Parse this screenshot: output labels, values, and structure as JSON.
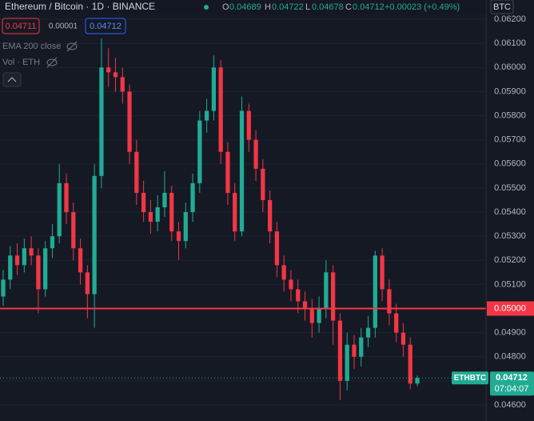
{
  "header": {
    "symbol": "Ethereum / Bitcoin · 1D · BINANCE",
    "o_label": "O",
    "o": "0.04689",
    "h_label": "H",
    "h": "0.04722",
    "l_label": "L",
    "l": "0.04678",
    "c_label": "C",
    "c": "0.04712",
    "change": "+0.00023 (+0.49%)",
    "currency": "BTC",
    "sell": "0.04711",
    "spread": "0.00001",
    "buy": "0.04712",
    "ema": "EMA 200 close",
    "vol": "Vol · ETH"
  },
  "chart_data": {
    "type": "candlestick",
    "open": [
      0.0505,
      0.0512,
      0.0522,
      0.0518,
      0.0525,
      0.0522,
      0.0508,
      0.0525,
      0.053,
      0.0552,
      0.054,
      0.0525,
      0.0515,
      0.0506,
      0.0555,
      0.06,
      0.0598,
      0.0596,
      0.059,
      0.0565,
      0.0548,
      0.054,
      0.0536,
      0.0542,
      0.0548,
      0.0532,
      0.0528,
      0.054,
      0.0552,
      0.0578,
      0.0582,
      0.06,
      0.0565,
      0.0548,
      0.0532,
      0.0582,
      0.057,
      0.0558,
      0.0545,
      0.0532,
      0.0518,
      0.0512,
      0.0508,
      0.0503,
      0.05,
      0.0494,
      0.05,
      0.0515,
      0.0495,
      0.047,
      0.0485,
      0.048,
      0.0488,
      0.0492,
      0.0522,
      0.0508,
      0.0498,
      0.049,
      0.0485,
      0.04689
    ],
    "high": [
      0.0516,
      0.0526,
      0.0527,
      0.0529,
      0.053,
      0.0525,
      0.0528,
      0.0535,
      0.056,
      0.0556,
      0.0544,
      0.0529,
      0.0518,
      0.056,
      0.0612,
      0.0608,
      0.0604,
      0.06,
      0.0593,
      0.057,
      0.0553,
      0.0545,
      0.0547,
      0.0557,
      0.0551,
      0.0536,
      0.0544,
      0.0556,
      0.0582,
      0.0587,
      0.0605,
      0.0603,
      0.0569,
      0.0552,
      0.0588,
      0.0585,
      0.0574,
      0.0562,
      0.0549,
      0.0536,
      0.0522,
      0.0516,
      0.0512,
      0.0507,
      0.0504,
      0.0505,
      0.052,
      0.0518,
      0.0498,
      0.049,
      0.0489,
      0.0492,
      0.0497,
      0.0524,
      0.0525,
      0.0512,
      0.0502,
      0.0494,
      0.0488,
      0.04722
    ],
    "low": [
      0.0501,
      0.0508,
      0.0514,
      0.0515,
      0.0518,
      0.0498,
      0.0505,
      0.0521,
      0.0527,
      0.0535,
      0.052,
      0.051,
      0.0496,
      0.0492,
      0.055,
      0.0592,
      0.059,
      0.0585,
      0.056,
      0.0543,
      0.0536,
      0.0531,
      0.0532,
      0.0538,
      0.0528,
      0.052,
      0.0525,
      0.0536,
      0.0548,
      0.0573,
      0.0578,
      0.056,
      0.0543,
      0.0528,
      0.053,
      0.0565,
      0.0553,
      0.054,
      0.0527,
      0.0513,
      0.0507,
      0.0503,
      0.0498,
      0.0495,
      0.0488,
      0.049,
      0.0496,
      0.0485,
      0.0462,
      0.0466,
      0.0475,
      0.0476,
      0.0484,
      0.0488,
      0.0503,
      0.0493,
      0.0486,
      0.048,
      0.04665,
      0.04678
    ],
    "close": [
      0.0512,
      0.0522,
      0.0518,
      0.0525,
      0.0522,
      0.0508,
      0.0525,
      0.053,
      0.0552,
      0.054,
      0.0525,
      0.0515,
      0.0506,
      0.0555,
      0.06,
      0.0598,
      0.0596,
      0.059,
      0.0565,
      0.0548,
      0.054,
      0.0536,
      0.0542,
      0.0548,
      0.0532,
      0.0528,
      0.054,
      0.0552,
      0.0578,
      0.0582,
      0.06,
      0.0565,
      0.0548,
      0.0532,
      0.0582,
      0.057,
      0.0558,
      0.0545,
      0.0532,
      0.0518,
      0.0512,
      0.0508,
      0.0503,
      0.05,
      0.0494,
      0.05,
      0.0515,
      0.0495,
      0.047,
      0.0485,
      0.048,
      0.0488,
      0.0492,
      0.0522,
      0.0508,
      0.0498,
      0.049,
      0.0485,
      0.04689,
      0.04712
    ],
    "up_color": "#22ab94",
    "down_color": "#f23645",
    "ylim": [
      0.0457,
      0.0628
    ],
    "yticks": [
      {
        "value": 0.046,
        "label": "0.04600"
      },
      {
        "value": 0.047,
        "label": "0.04700"
      },
      {
        "value": 0.048,
        "label": "0.04800"
      },
      {
        "value": 0.049,
        "label": "0.04900"
      },
      {
        "value": 0.05,
        "label": "0.05000"
      },
      {
        "value": 0.051,
        "label": "0.05100"
      },
      {
        "value": 0.052,
        "label": "0.05200"
      },
      {
        "value": 0.053,
        "label": "0.05300"
      },
      {
        "value": 0.054,
        "label": "0.05400"
      },
      {
        "value": 0.055,
        "label": "0.05500"
      },
      {
        "value": 0.056,
        "label": "0.05600"
      },
      {
        "value": 0.057,
        "label": "0.05700"
      },
      {
        "value": 0.058,
        "label": "0.05800"
      },
      {
        "value": 0.059,
        "label": "0.05900"
      },
      {
        "value": 0.06,
        "label": "0.06000"
      },
      {
        "value": 0.061,
        "label": "0.06100"
      },
      {
        "value": 0.062,
        "label": "0.06200"
      }
    ],
    "grid": true,
    "hline": {
      "value": 0.05,
      "label": "0.05000",
      "color": "#f23645"
    },
    "last_price": {
      "value": 0.04712,
      "label": "0.04712",
      "symbol": "ETHBTC",
      "countdown": "07:04:07",
      "color": "#22ab94"
    }
  }
}
